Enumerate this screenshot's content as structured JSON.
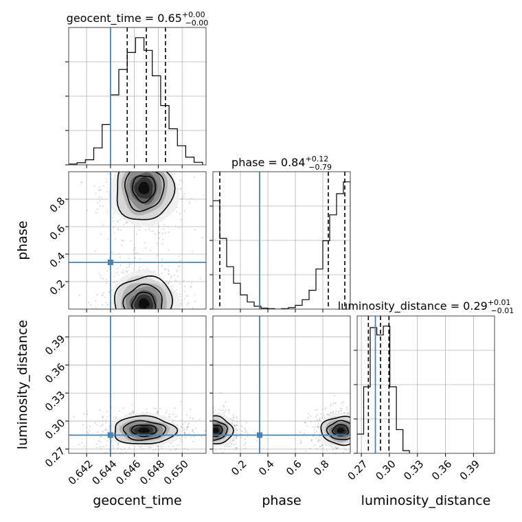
{
  "chart_data": {
    "type": "corner",
    "parameters": [
      "geocent_time",
      "phase",
      "luminosity_distance"
    ],
    "colors": {
      "truth": "#4682b4",
      "hist": "#000000",
      "density": "#000000",
      "grid": "#b0b0b0"
    },
    "grid": true,
    "truths": {
      "geocent_time": 0.644,
      "phase": 0.34,
      "luminosity_distance": 0.285
    },
    "panels": {
      "geocent_time": {
        "title": "geocent_time = 0.65",
        "title_sup": "+0.00",
        "title_sub": "−0.00",
        "xlim": [
          0.6405,
          0.652
        ],
        "xticks": [
          "0.642",
          "0.644",
          "0.646",
          "0.648",
          "0.650"
        ],
        "xlabel": "geocent_time",
        "bins_x": [
          0.6405,
          0.6412,
          0.6419,
          0.6426,
          0.6433,
          0.644,
          0.6447,
          0.6454,
          0.6461,
          0.6468,
          0.6475,
          0.6482,
          0.6489,
          0.6496,
          0.6503,
          0.651,
          0.6517
        ],
        "counts": [
          2,
          5,
          12,
          40,
          95,
          165,
          225,
          265,
          300,
          270,
          210,
          140,
          85,
          45,
          18,
          6
        ],
        "quantiles": [
          0.6454,
          0.647,
          0.6486
        ]
      },
      "phase": {
        "title": "phase = 0.84",
        "title_sup": "+0.12",
        "title_sub": "−0.79",
        "xlim": [
          0.0,
          1.0
        ],
        "xticks": [
          "0.2",
          "0.4",
          "0.6",
          "0.8"
        ],
        "xlabel": "phase",
        "bins_x": [
          0.0,
          0.05,
          0.1,
          0.15,
          0.2,
          0.25,
          0.3,
          0.35,
          0.4,
          0.45,
          0.5,
          0.55,
          0.6,
          0.65,
          0.7,
          0.75,
          0.8,
          0.85,
          0.9,
          0.95,
          1.0
        ],
        "counts": [
          230,
          150,
          90,
          55,
          30,
          15,
          6,
          2,
          1,
          0,
          1,
          3,
          8,
          20,
          40,
          85,
          145,
          200,
          245,
          270
        ],
        "quantiles": [
          0.05,
          0.84,
          0.96
        ]
      },
      "luminosity_distance": {
        "title": "luminosity_distance = 0.29",
        "title_sup": "+0.01",
        "title_sub": "−0.01",
        "xlim": [
          0.2655,
          0.4125
        ],
        "xticks": [
          "0.27",
          "0.30",
          "0.33",
          "0.36",
          "0.39"
        ],
        "xlabel": "luminosity_distance",
        "bins_x": [
          0.2655,
          0.2725,
          0.2795,
          0.2865,
          0.2935,
          0.3005,
          0.3075,
          0.3145,
          0.3215
        ],
        "counts": [
          130,
          450,
          850,
          800,
          860,
          450,
          160,
          18
        ],
        "quantiles": [
          0.2775,
          0.2905,
          0.2995
        ]
      }
    },
    "y_axes": {
      "phase": {
        "label": "phase",
        "ylim": [
          0.0,
          1.0
        ],
        "yticks": [
          "0.2",
          "0.4",
          "0.6",
          "0.8"
        ]
      },
      "luminosity_distance": {
        "label": "luminosity_distance",
        "ylim": [
          0.2655,
          0.4125
        ],
        "yticks": [
          "0.27",
          "0.30",
          "0.33",
          "0.36",
          "0.39"
        ]
      }
    },
    "blobs": {
      "phase_vs_geocent_time": [
        {
          "x": 0.6468,
          "y": 0.88,
          "sx": 0.0012,
          "sy": 0.12
        },
        {
          "x": 0.6468,
          "y": 0.04,
          "sx": 0.0012,
          "sy": 0.1
        }
      ],
      "luminosity_distance_vs_geocent_time": [
        {
          "x": 0.6468,
          "y": 0.29,
          "sx": 0.0013,
          "sy": 0.0075
        }
      ],
      "luminosity_distance_vs_phase": [
        {
          "x": 0.02,
          "y": 0.29,
          "sx": 0.06,
          "sy": 0.0075
        },
        {
          "x": 0.93,
          "y": 0.29,
          "sx": 0.07,
          "sy": 0.0075
        }
      ]
    }
  }
}
